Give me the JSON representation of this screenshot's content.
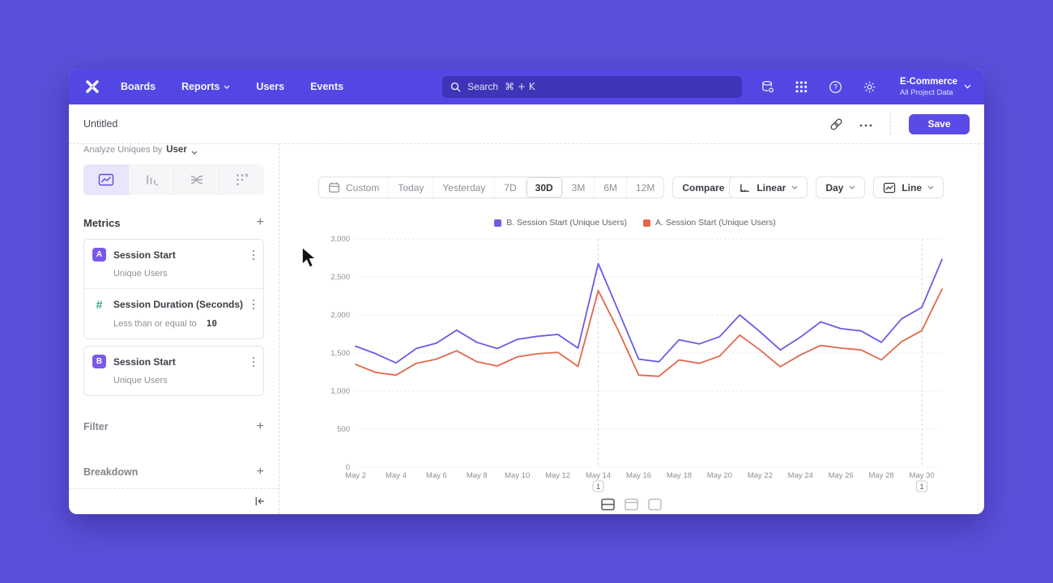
{
  "nav": {
    "links": [
      "Boards",
      "Reports",
      "Users",
      "Events"
    ],
    "search_label": "Search",
    "search_shortcut": "⌘ + K",
    "project_name": "E-Commerce",
    "project_sub": "All Project Data",
    "icons": [
      "mixpanel-x-logo",
      "search-icon",
      "data-management-icon",
      "apps-grid-icon",
      "help-icon",
      "settings-gear-icon",
      "chevron-down-icon"
    ]
  },
  "titlebar": {
    "title": "Untitled",
    "more_label": "⋯",
    "save_label": "Save",
    "icons": [
      "link-icon",
      "more-dots-icon"
    ]
  },
  "sidebar": {
    "analyze_label": "Analyze Uniques by",
    "analyze_value": "User",
    "metrics_header": "Metrics",
    "metrics": [
      {
        "badge": "A",
        "name": "Session Start",
        "sub": "Unique Users"
      },
      {
        "badge": "#",
        "name": "Session Duration (Seconds)",
        "sub": "Less than or equal to",
        "value": "10"
      },
      {
        "badge": "B",
        "name": "Session Start",
        "sub": "Unique Users"
      }
    ],
    "filter_header": "Filter",
    "breakdown_header": "Breakdown",
    "tab_icons": [
      "line-chart-tab-icon",
      "bar-chart-tab-icon",
      "flow-chart-tab-icon",
      "scatter-chart-tab-icon"
    ],
    "collapse_icon": "collapse-left-icon"
  },
  "controls": {
    "ranges": [
      "Custom",
      "Today",
      "Yesterday",
      "7D",
      "30D",
      "3M",
      "6M",
      "12M"
    ],
    "active_range": "30D",
    "compare_label": "Compare",
    "scale_label": "Linear",
    "interval_label": "Day",
    "chart_type_label": "Line"
  },
  "chart_data": {
    "type": "line",
    "title": "",
    "xlabel": "",
    "ylabel": "",
    "ylim": [
      0,
      3000
    ],
    "yticks": [
      0,
      500,
      1000,
      1500,
      2000,
      2500,
      3000
    ],
    "grid": "horizontal-dotted",
    "legend_position": "top-center",
    "x": [
      "May 2",
      "May 3",
      "May 4",
      "May 5",
      "May 6",
      "May 7",
      "May 8",
      "May 9",
      "May 10",
      "May 11",
      "May 12",
      "May 13",
      "May 14",
      "May 15",
      "May 16",
      "May 17",
      "May 18",
      "May 19",
      "May 20",
      "May 21",
      "May 22",
      "May 23",
      "May 24",
      "May 25",
      "May 26",
      "May 27",
      "May 28",
      "May 29",
      "May 30",
      "May 31"
    ],
    "x_tick_labels": [
      "May 2",
      "May 4",
      "May 6",
      "May 8",
      "May 10",
      "May 12",
      "May 14",
      "May 16",
      "May 18",
      "May 20",
      "May 22",
      "May 24",
      "May 26",
      "May 28",
      "May 30"
    ],
    "series": [
      {
        "name": "B. Session Start (Unique Users)",
        "color": "#6a5ce4",
        "values": [
          1590,
          1490,
          1370,
          1560,
          1630,
          1800,
          1640,
          1560,
          1680,
          1720,
          1745,
          1565,
          2675,
          2050,
          1420,
          1385,
          1675,
          1620,
          1715,
          2000,
          1780,
          1540,
          1710,
          1910,
          1820,
          1790,
          1640,
          1950,
          2100,
          2730
        ]
      },
      {
        "name": "A. Session Start (Unique Users)",
        "color": "#e0694c",
        "values": [
          1350,
          1245,
          1210,
          1365,
          1420,
          1530,
          1385,
          1330,
          1450,
          1490,
          1510,
          1325,
          2320,
          1790,
          1210,
          1195,
          1410,
          1365,
          1460,
          1735,
          1540,
          1320,
          1475,
          1600,
          1565,
          1540,
          1410,
          1650,
          1795,
          2340
        ]
      }
    ],
    "annotations": [
      {
        "x": "May 14",
        "label": "1"
      },
      {
        "x": "May 30",
        "label": "1"
      }
    ]
  },
  "bottom_icons": [
    "layout-split-icon",
    "layout-header-icon",
    "layout-full-icon"
  ]
}
